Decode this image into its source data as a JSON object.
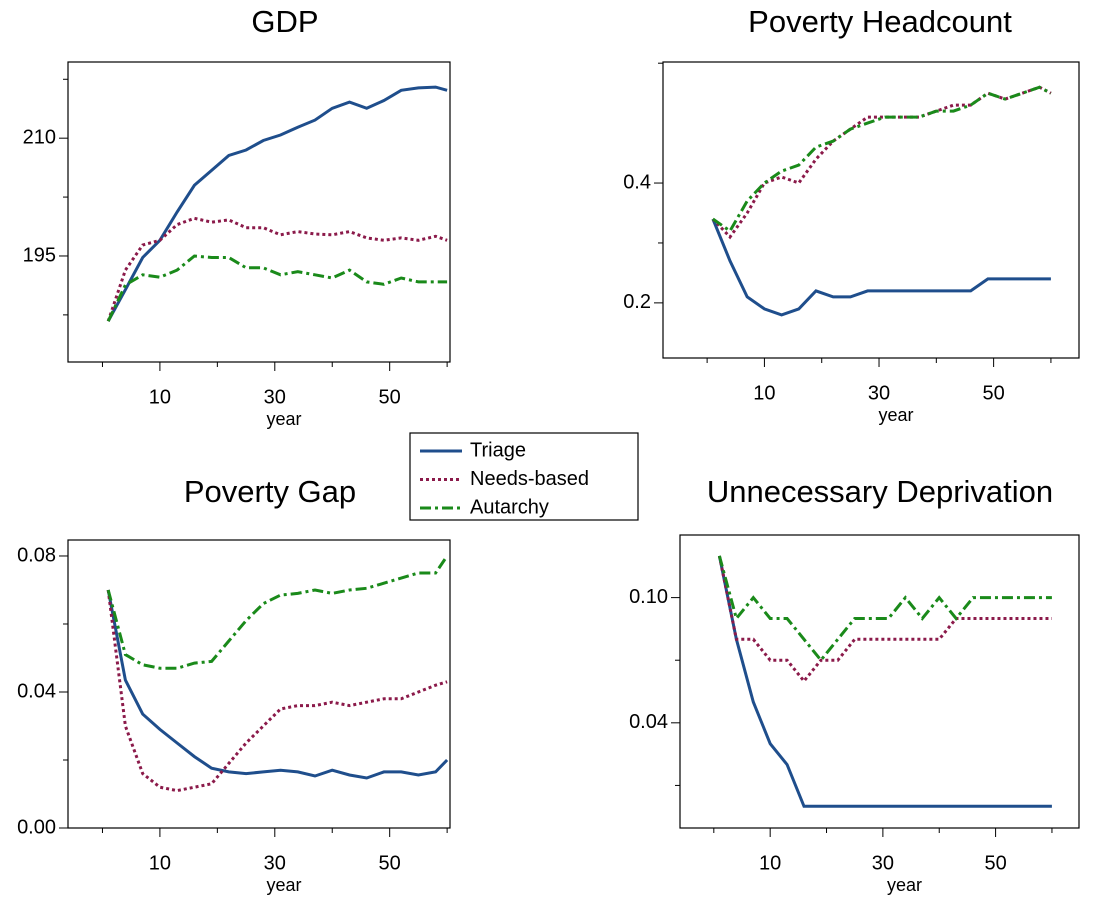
{
  "chart_data": [
    {
      "type": "line",
      "title": "GDP",
      "xlabel": "year",
      "x": [
        1,
        4,
        7,
        10,
        13,
        16,
        19,
        22,
        25,
        28,
        31,
        34,
        37,
        40,
        43,
        46,
        49,
        52,
        55,
        58,
        60
      ],
      "xlim": [
        -6,
        60.5
      ],
      "xticks": [
        10,
        30,
        50
      ],
      "xticks_minor": [
        0,
        20,
        40,
        60
      ],
      "ylim": [
        181.5,
        219.7
      ],
      "yticks": [
        195,
        210
      ],
      "yticks_minor": [
        187.5,
        202.5,
        217.5
      ],
      "legend": "center",
      "series": [
        {
          "name": "Triage",
          "color": "#1f4e8c",
          "dash": "solid",
          "values": [
            186.7,
            190.7,
            194.8,
            197.0,
            200.6,
            204.0,
            205.9,
            207.8,
            208.5,
            209.7,
            210.4,
            211.4,
            212.3,
            213.8,
            214.6,
            213.8,
            214.8,
            216.1,
            216.4,
            216.5,
            216.1
          ]
        },
        {
          "name": "Needs-based",
          "color": "#8b1a4a",
          "dash": "dotted",
          "values": [
            186.7,
            193.2,
            196.4,
            197.0,
            199.0,
            199.8,
            199.3,
            199.6,
            198.6,
            198.6,
            197.7,
            198.1,
            197.8,
            197.7,
            198.1,
            197.3,
            197.0,
            197.3,
            197.0,
            197.5,
            197.0
          ]
        },
        {
          "name": "Autarchy",
          "color": "#1a8a1a",
          "dash": "dashdot",
          "values": [
            186.7,
            191.3,
            192.6,
            192.3,
            193.2,
            195.0,
            194.8,
            194.8,
            193.5,
            193.5,
            192.6,
            193.0,
            192.6,
            192.2,
            193.2,
            191.7,
            191.4,
            192.2,
            191.7,
            191.7,
            191.7
          ]
        }
      ]
    },
    {
      "type": "line",
      "title": "Poverty Headcount",
      "xlabel": "year",
      "x": [
        1,
        4,
        7,
        10,
        13,
        16,
        19,
        22,
        25,
        28,
        31,
        34,
        37,
        40,
        43,
        46,
        49,
        52,
        55,
        58,
        60
      ],
      "xlim": [
        -7.7,
        64.9
      ],
      "xticks": [
        10,
        30,
        50
      ],
      "xticks_minor": [
        0,
        20,
        40,
        60
      ],
      "ylim": [
        0.108,
        0.602
      ],
      "yticks": [
        0.2,
        0.4
      ],
      "yticks_minor": [
        0.3,
        0.6
      ],
      "series": [
        {
          "name": "Triage",
          "color": "#1f4e8c",
          "dash": "solid",
          "values": [
            0.34,
            0.27,
            0.21,
            0.19,
            0.18,
            0.19,
            0.22,
            0.21,
            0.21,
            0.22,
            0.22,
            0.22,
            0.22,
            0.22,
            0.22,
            0.22,
            0.24,
            0.24,
            0.24,
            0.24,
            0.24
          ]
        },
        {
          "name": "Needs-based",
          "color": "#8b1a4a",
          "dash": "dotted",
          "values": [
            0.34,
            0.31,
            0.35,
            0.4,
            0.41,
            0.4,
            0.44,
            0.47,
            0.49,
            0.51,
            0.51,
            0.51,
            0.51,
            0.52,
            0.53,
            0.53,
            0.55,
            0.54,
            0.55,
            0.56,
            0.55
          ]
        },
        {
          "name": "Autarchy",
          "color": "#1a8a1a",
          "dash": "dashdot",
          "values": [
            0.34,
            0.32,
            0.37,
            0.4,
            0.42,
            0.43,
            0.46,
            0.47,
            0.49,
            0.5,
            0.51,
            0.51,
            0.51,
            0.52,
            0.52,
            0.53,
            0.55,
            0.54,
            0.55,
            0.56,
            0.55
          ]
        }
      ]
    },
    {
      "type": "line",
      "title": "Poverty Gap",
      "xlabel": "year",
      "x": [
        1,
        4,
        7,
        10,
        13,
        16,
        19,
        22,
        25,
        28,
        31,
        34,
        37,
        40,
        43,
        46,
        49,
        52,
        55,
        58,
        60
      ],
      "xlim": [
        -6,
        60.5
      ],
      "xticks": [
        10,
        30,
        50
      ],
      "xticks_minor": [
        0,
        20,
        40,
        60
      ],
      "ylim": [
        0,
        0.0847
      ],
      "yticks": [
        {
          "value": 0,
          "label": "0.00"
        },
        0.04,
        0.08
      ],
      "yticks_minor": [
        0.02,
        0.06
      ],
      "series": [
        {
          "name": "Triage",
          "color": "#1f4e8c",
          "dash": "solid",
          "values": [
            0.07,
            0.0435,
            0.0335,
            0.029,
            0.025,
            0.021,
            0.0176,
            0.0165,
            0.016,
            0.0165,
            0.017,
            0.0165,
            0.0153,
            0.017,
            0.0156,
            0.0147,
            0.0165,
            0.0165,
            0.0156,
            0.0165,
            0.02
          ]
        },
        {
          "name": "Needs-based",
          "color": "#8b1a4a",
          "dash": "dotted",
          "values": [
            0.07,
            0.03,
            0.016,
            0.012,
            0.011,
            0.012,
            0.013,
            0.019,
            0.025,
            0.03,
            0.035,
            0.036,
            0.036,
            0.037,
            0.036,
            0.037,
            0.038,
            0.038,
            0.04,
            0.042,
            0.043
          ]
        },
        {
          "name": "Autarchy",
          "color": "#1a8a1a",
          "dash": "dashdot",
          "values": [
            0.07,
            0.051,
            0.048,
            0.047,
            0.047,
            0.0485,
            0.049,
            0.055,
            0.061,
            0.066,
            0.0685,
            0.069,
            0.07,
            0.069,
            0.07,
            0.0705,
            0.072,
            0.0735,
            0.075,
            0.075,
            0.08
          ]
        }
      ]
    },
    {
      "type": "line",
      "title": "Unnecessary Deprivation",
      "xlabel": "year",
      "x": [
        1,
        4,
        7,
        10,
        13,
        16,
        19,
        22,
        25,
        28,
        31,
        34,
        37,
        40,
        43,
        46,
        49,
        52,
        55,
        58,
        60
      ],
      "xlim": [
        -6,
        64.8
      ],
      "xticks": [
        10,
        30,
        50
      ],
      "xticks_minor": [
        0,
        20,
        40,
        60
      ],
      "ylim": [
        -0.0104,
        0.13
      ],
      "yticks": [
        0.04,
        {
          "value": 0.1,
          "label": "0.10"
        }
      ],
      "yticks_minor": [
        0.01,
        0.07
      ],
      "series": [
        {
          "name": "Triage",
          "color": "#1f4e8c",
          "dash": "solid",
          "values": [
            0.12,
            0.08,
            0.05,
            0.03,
            0.02,
            0.0,
            0.0,
            0.0,
            0.0,
            0.0,
            0.0,
            0.0,
            0.0,
            0.0,
            0.0,
            0.0,
            0.0,
            0.0,
            0.0,
            0.0,
            0.0
          ]
        },
        {
          "name": "Needs-based",
          "color": "#8b1a4a",
          "dash": "dotted",
          "values": [
            0.12,
            0.08,
            0.08,
            0.07,
            0.07,
            0.06,
            0.07,
            0.07,
            0.08,
            0.08,
            0.08,
            0.08,
            0.08,
            0.08,
            0.09,
            0.09,
            0.09,
            0.09,
            0.09,
            0.09,
            0.09
          ]
        },
        {
          "name": "Autarchy",
          "color": "#1a8a1a",
          "dash": "dashdot",
          "values": [
            0.12,
            0.09,
            0.1,
            0.09,
            0.09,
            0.08,
            0.07,
            0.08,
            0.09,
            0.09,
            0.09,
            0.1,
            0.09,
            0.1,
            0.09,
            0.1,
            0.1,
            0.1,
            0.1,
            0.1,
            0.1
          ]
        }
      ]
    }
  ]
}
